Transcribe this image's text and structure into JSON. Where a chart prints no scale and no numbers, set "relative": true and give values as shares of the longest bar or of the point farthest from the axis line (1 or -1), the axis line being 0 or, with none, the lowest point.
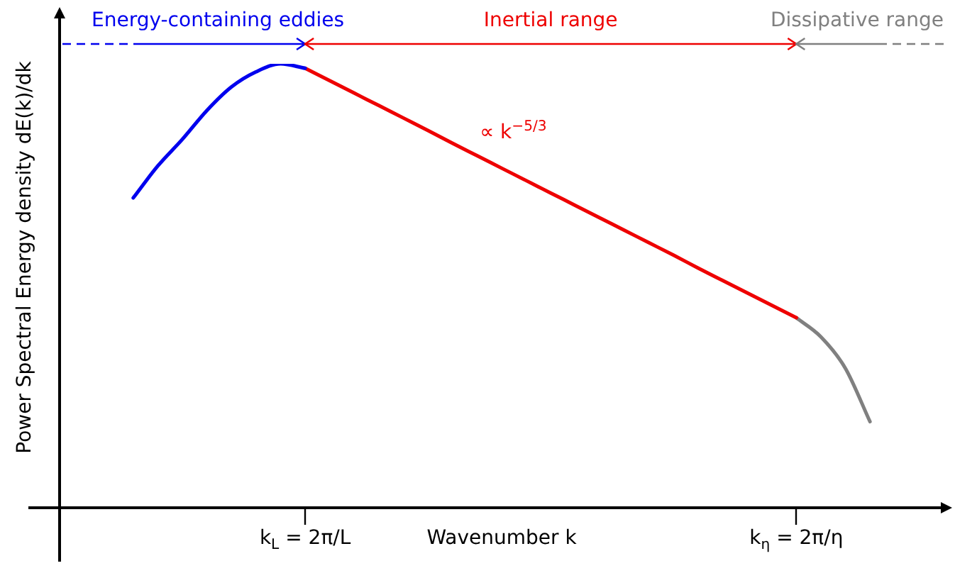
{
  "chart_data": {
    "type": "line",
    "relative": true,
    "xlabel": "Wavenumber k",
    "ylabel": "Power Spectral Energy density dE(k)/dk",
    "categories": [
      null,
      null,
      null,
      null,
      null,
      null,
      null,
      null,
      null,
      null,
      "k$_{L}$ = 2π/L",
      null,
      null,
      null,
      null,
      null,
      null,
      null,
      null,
      null,
      null,
      null,
      null,
      null,
      null,
      null,
      null,
      null,
      null,
      null,
      "k$_{η}$ = 2π/η",
      null,
      null,
      null,
      null,
      null,
      null
    ],
    "series": [
      {
        "name": "Energy-containing eddies",
        "color": "#0000ee",
        "values": [
          null,
          null,
          null,
          0.698,
          0.77,
          0.83,
          0.895,
          0.948,
          0.982,
          1.0,
          0.99,
          null,
          null,
          null,
          null,
          null,
          null,
          null,
          null,
          null,
          null,
          null,
          null,
          null,
          null,
          null,
          null,
          null,
          null,
          null,
          null,
          null,
          null,
          null,
          null,
          null,
          null
        ]
      },
      {
        "name": "Inertial range",
        "color": "#ee0000",
        "values": [
          null,
          null,
          null,
          null,
          null,
          null,
          null,
          null,
          null,
          null,
          0.99,
          0.962,
          0.934,
          0.906,
          0.878,
          0.85,
          0.821,
          0.793,
          0.765,
          0.737,
          0.709,
          0.681,
          0.653,
          0.625,
          0.597,
          0.569,
          0.54,
          0.512,
          0.484,
          0.456,
          0.428,
          null,
          null,
          null,
          null,
          null,
          null
        ]
      },
      {
        "name": "Dissipative range",
        "color": "#808080",
        "values": [
          null,
          null,
          null,
          null,
          null,
          null,
          null,
          null,
          null,
          null,
          null,
          null,
          null,
          null,
          null,
          null,
          null,
          null,
          null,
          null,
          null,
          null,
          null,
          null,
          null,
          null,
          null,
          null,
          null,
          null,
          0.428,
          0.385,
          0.314,
          0.194,
          null,
          null,
          null
        ]
      }
    ],
    "annotations": [
      "∝ k$^{−5/3}$"
    ],
    "legend": false,
    "marker": "none",
    "line_style": "solid"
  }
}
